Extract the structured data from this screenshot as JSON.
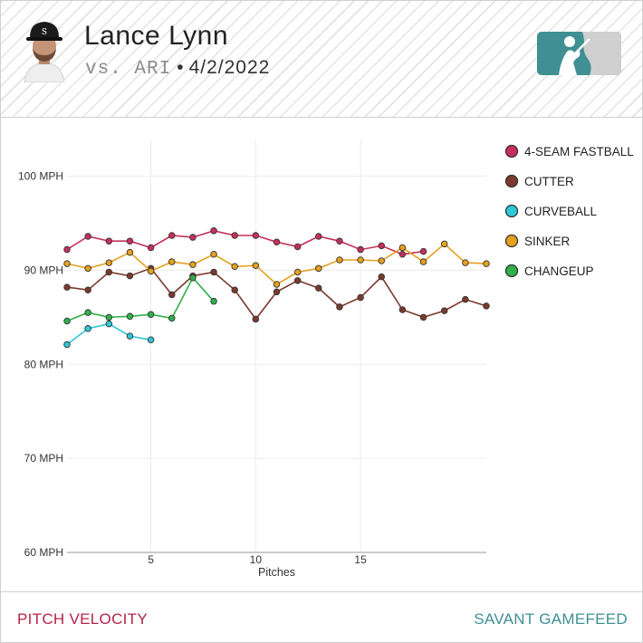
{
  "header": {
    "player_name": "Lance Lynn",
    "opponent": "vs. ARI",
    "separator": "•",
    "date": "4/2/2022"
  },
  "footer": {
    "left_label": "PITCH VELOCITY",
    "right_label": "SAVANT GAMEFEED"
  },
  "colors": {
    "accent_left": "#b5234a",
    "accent_right": "#3f8f93",
    "mlb_logo_blue": "#3f8f93"
  },
  "chart_data": {
    "type": "line",
    "title": "",
    "xlabel": "Pitches",
    "ylabel": "",
    "x_ticks": [
      5,
      10,
      15
    ],
    "y_ticks": [
      {
        "value": 60,
        "label": "60 MPH"
      },
      {
        "value": 70,
        "label": "70 MPH"
      },
      {
        "value": 80,
        "label": "80 MPH"
      },
      {
        "value": 90,
        "label": "90 MPH"
      },
      {
        "value": 100,
        "label": "100 MPH"
      }
    ],
    "xlim": [
      1,
      21
    ],
    "ylim": [
      60,
      104
    ],
    "grid": true,
    "legend_position": "right",
    "series": [
      {
        "name": "4-SEAM FASTBALL",
        "color": "#c5305a",
        "points": [
          [
            1,
            92.2
          ],
          [
            2,
            93.6
          ],
          [
            3,
            93.1
          ],
          [
            4,
            93.1
          ],
          [
            5,
            92.4
          ],
          [
            6,
            93.7
          ],
          [
            7,
            93.5
          ],
          [
            8,
            94.2
          ],
          [
            9,
            93.7
          ],
          [
            10,
            93.7
          ],
          [
            11,
            93.0
          ],
          [
            12,
            92.5
          ],
          [
            13,
            93.6
          ],
          [
            14,
            93.1
          ],
          [
            15,
            92.2
          ],
          [
            16,
            92.6
          ],
          [
            17,
            91.7
          ],
          [
            18,
            92.0
          ]
        ]
      },
      {
        "name": "CUTTER",
        "color": "#7b3a2d",
        "points": [
          [
            1,
            88.2
          ],
          [
            2,
            87.9
          ],
          [
            3,
            89.8
          ],
          [
            4,
            89.4
          ],
          [
            5,
            90.2
          ],
          [
            6,
            87.4
          ],
          [
            7,
            89.4
          ],
          [
            8,
            89.8
          ],
          [
            9,
            87.9
          ],
          [
            10,
            84.8
          ],
          [
            11,
            87.7
          ],
          [
            12,
            88.9
          ],
          [
            13,
            88.1
          ],
          [
            14,
            86.1
          ],
          [
            15,
            87.1
          ],
          [
            16,
            89.3
          ],
          [
            17,
            85.8
          ],
          [
            18,
            85.0
          ],
          [
            19,
            85.7
          ],
          [
            20,
            86.9
          ],
          [
            21,
            86.2
          ]
        ]
      },
      {
        "name": "CURVEBALL",
        "color": "#2ec7d6",
        "points": [
          [
            1,
            82.1
          ],
          [
            2,
            83.8
          ],
          [
            3,
            84.3
          ],
          [
            4,
            83.0
          ],
          [
            5,
            82.6
          ]
        ]
      },
      {
        "name": "SINKER",
        "color": "#e5a11e",
        "points": [
          [
            1,
            90.7
          ],
          [
            2,
            90.2
          ],
          [
            3,
            90.8
          ],
          [
            4,
            91.9
          ],
          [
            5,
            89.9
          ],
          [
            6,
            90.9
          ],
          [
            7,
            90.6
          ],
          [
            8,
            91.7
          ],
          [
            9,
            90.4
          ],
          [
            10,
            90.5
          ],
          [
            11,
            88.5
          ],
          [
            12,
            89.8
          ],
          [
            13,
            90.2
          ],
          [
            14,
            91.1
          ],
          [
            15,
            91.1
          ],
          [
            16,
            91.0
          ],
          [
            17,
            92.4
          ],
          [
            18,
            90.9
          ],
          [
            19,
            92.8
          ],
          [
            20,
            90.8
          ],
          [
            21,
            90.7
          ]
        ]
      },
      {
        "name": "CHANGEUP",
        "color": "#32b04a",
        "points": [
          [
            1,
            84.6
          ],
          [
            2,
            85.5
          ],
          [
            3,
            85.0
          ],
          [
            4,
            85.1
          ],
          [
            5,
            85.3
          ],
          [
            6,
            84.9
          ],
          [
            7,
            89.2
          ],
          [
            8,
            86.7
          ]
        ]
      }
    ]
  }
}
